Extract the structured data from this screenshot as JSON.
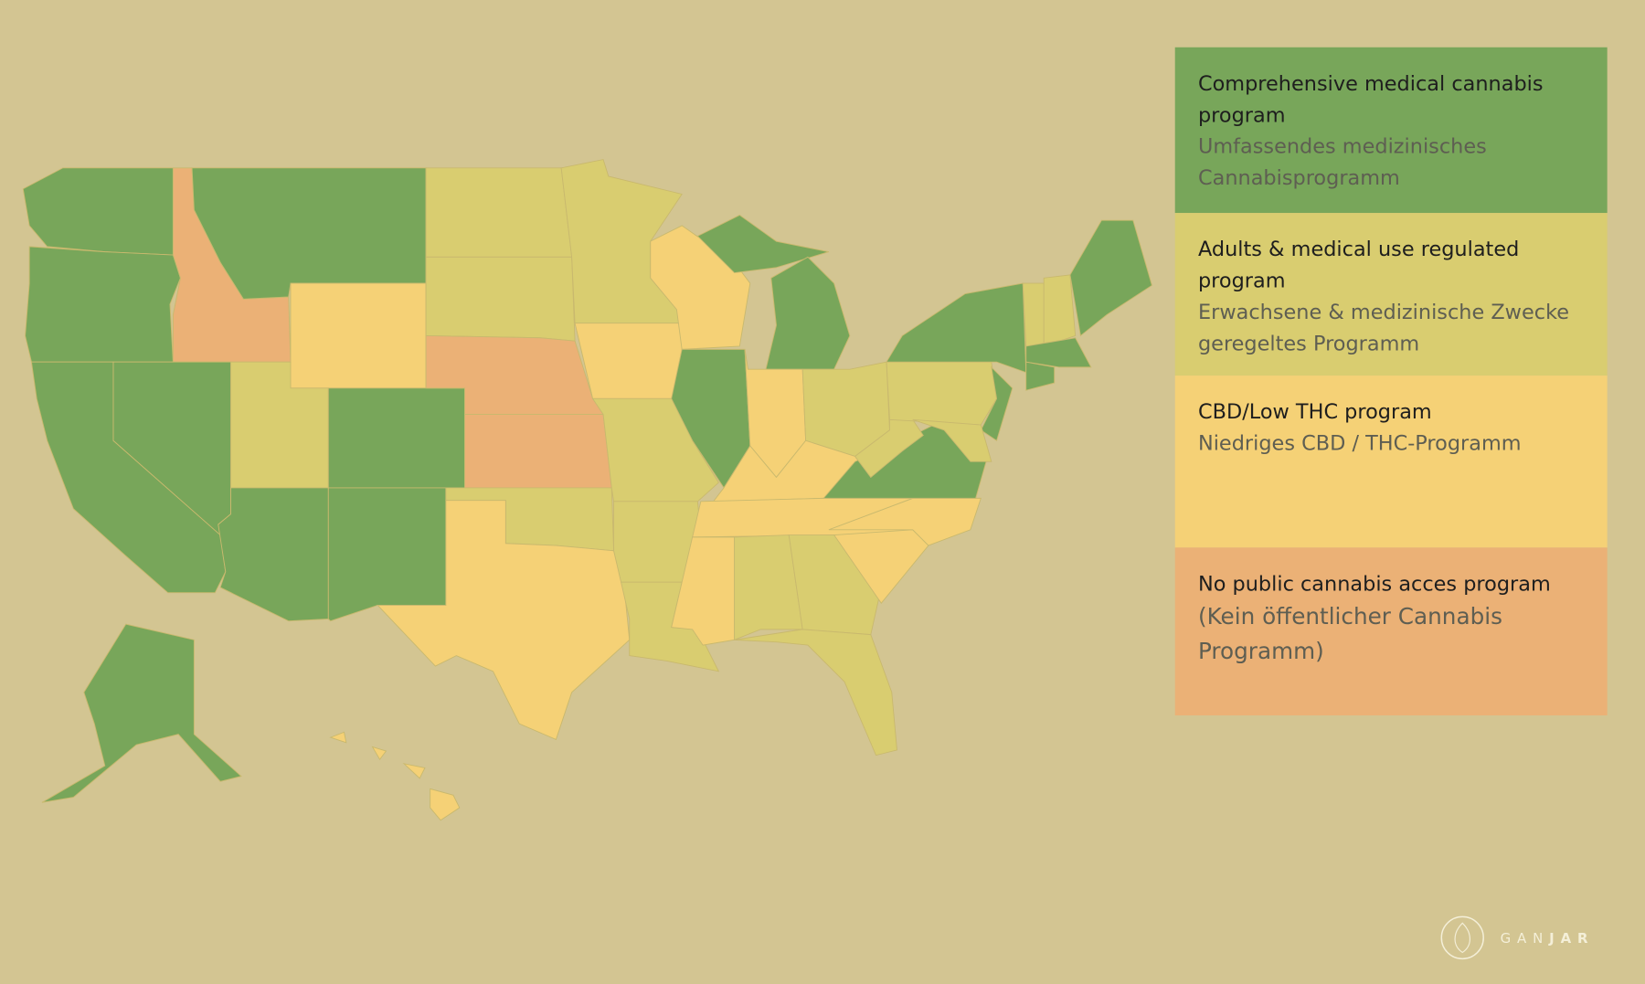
{
  "legend": [
    {
      "title": "Comprehensive medical cannabis program",
      "subtitle": "Umfassendes medizinisches Cannabisprogramm",
      "color": "#78a65a"
    },
    {
      "title": "Adults & medical use regulated program",
      "subtitle": "Erwachsene & medizinische Zwecke geregeltes Programm",
      "color": "#d9cd70"
    },
    {
      "title": "CBD/Low THC program",
      "subtitle": "Niedriges CBD / THC-Programm",
      "color": "#f5d176"
    },
    {
      "title": "No public cannabis acces program",
      "subtitle": "(Kein öffentlicher Cannabis Programm)",
      "color": "#ebb176"
    }
  ],
  "logo": {
    "light": "GAN",
    "bold": "JAR"
  }
}
